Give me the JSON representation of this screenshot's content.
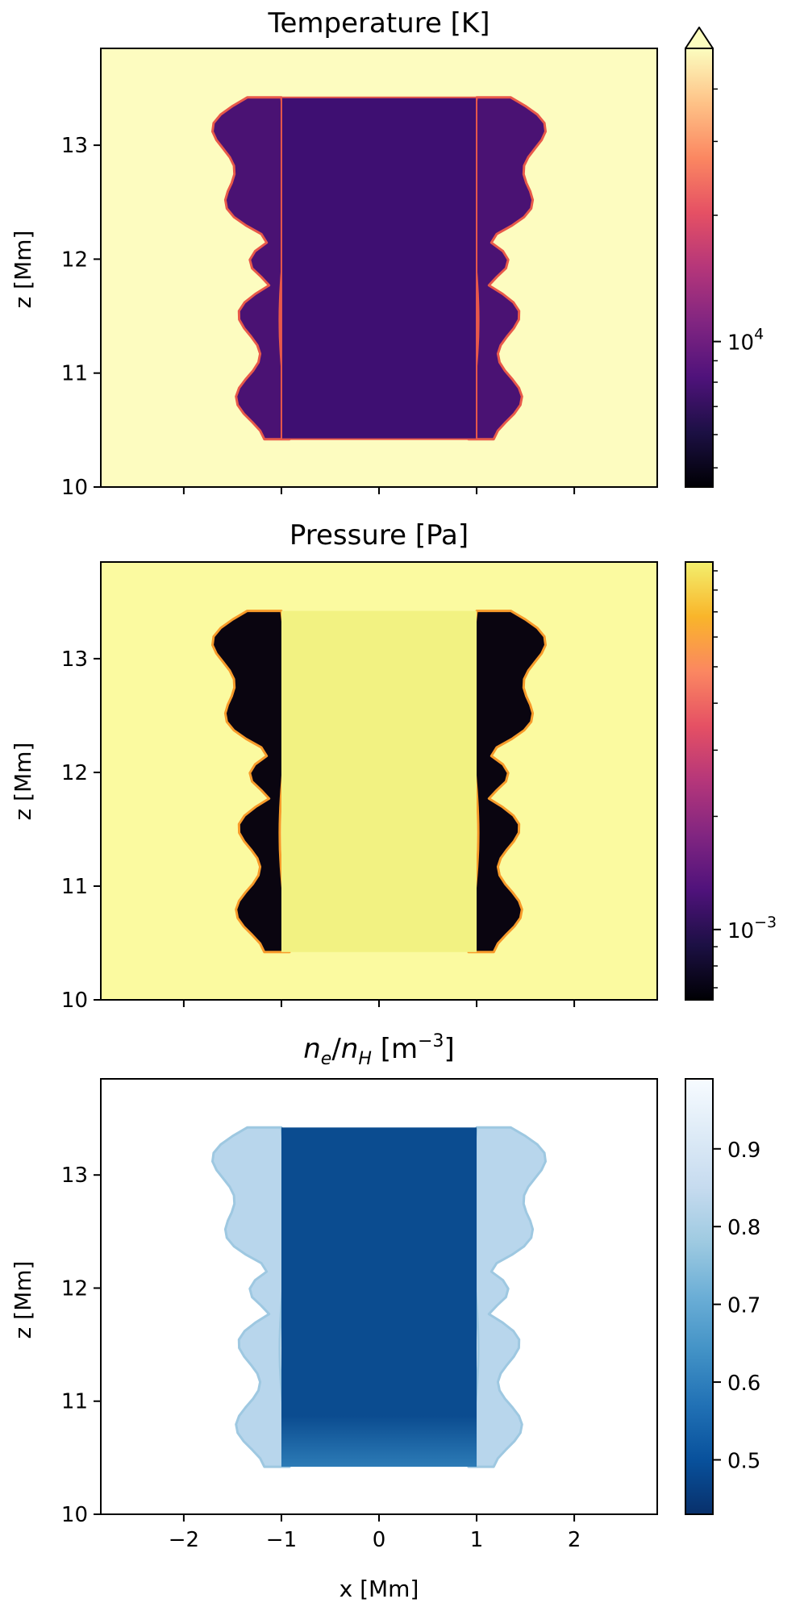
{
  "chart_data": [
    {
      "type": "heatmap",
      "title": "Temperature [K]",
      "xlabel": "",
      "ylabel": "z [Mm]",
      "xlim": [
        -2.85,
        2.85
      ],
      "ylim": [
        10,
        13.85
      ],
      "x_ticks": [
        -2,
        -1,
        0,
        1,
        2
      ],
      "x_tick_labels": [
        "",
        "",
        "",
        "",
        ""
      ],
      "y_ticks": [
        10,
        11,
        12,
        13
      ],
      "y_tick_labels": [
        "10",
        "11",
        "12",
        "13"
      ],
      "colormap": "inferno-like",
      "colors": {
        "background": "#fdfcc0",
        "inner": "#3e0f72",
        "edge": "#e8594a"
      },
      "colorbar": {
        "scale": "log",
        "min": 4500,
        "max": 50000,
        "ticks": [
          10000
        ],
        "tick_labels": [
          "10"
        ],
        "tick_exponents": [
          "4"
        ],
        "extend": "max",
        "stops": [
          "#000004",
          "#1c1044",
          "#4f127b",
          "#812581",
          "#b5367a",
          "#e55064",
          "#fb8761",
          "#fec287",
          "#fcfdbf"
        ]
      },
      "region": {
        "x_range": [
          -1.0,
          1.0
        ],
        "z_range": [
          10.42,
          13.42
        ],
        "mixing_x_extent": [
          1.0,
          1.75
        ]
      }
    },
    {
      "type": "heatmap",
      "title": "Pressure [Pa]",
      "xlabel": "",
      "ylabel": "z [Mm]",
      "xlim": [
        -2.85,
        2.85
      ],
      "ylim": [
        10,
        13.85
      ],
      "x_ticks": [
        -2,
        -1,
        0,
        1,
        2
      ],
      "x_tick_labels": [
        "",
        "",
        "",
        "",
        ""
      ],
      "y_ticks": [
        10,
        11,
        12,
        13
      ],
      "y_tick_labels": [
        "10",
        "11",
        "12",
        "13"
      ],
      "colormap": "inferno-like",
      "colors": {
        "background": "#fbfaa0",
        "inner": "#f2f282",
        "edge": "#f79a2a"
      },
      "colorbar": {
        "scale": "log",
        "min": 0.00065,
        "max": 0.0095,
        "ticks": [
          0.001
        ],
        "tick_labels": [
          "10"
        ],
        "tick_exponents": [
          "−3"
        ],
        "stops": [
          "#000004",
          "#1c1044",
          "#4f127b",
          "#812581",
          "#b5367a",
          "#e55064",
          "#fb8761",
          "#f9b52a",
          "#f3ef6e"
        ]
      },
      "region": {
        "x_range": [
          -1.0,
          1.0
        ],
        "z_range": [
          10.42,
          13.42
        ],
        "mixing_x_extent": [
          1.0,
          1.75
        ]
      }
    },
    {
      "type": "heatmap",
      "title": "n_e/n_H [m^-3]",
      "title_parts": {
        "n": "n",
        "e": "e",
        "slash": "/",
        "h": "H",
        "unit_open": " [m",
        "unit_exp": "−3",
        "unit_close": "]"
      },
      "xlabel": "x [Mm]",
      "ylabel": "z [Mm]",
      "xlim": [
        -2.85,
        2.85
      ],
      "ylim": [
        10,
        13.85
      ],
      "x_ticks": [
        -2,
        -1,
        0,
        1,
        2
      ],
      "x_tick_labels": [
        "−2",
        "−1",
        "0",
        "1",
        "2"
      ],
      "y_ticks": [
        10,
        11,
        12,
        13
      ],
      "y_tick_labels": [
        "10",
        "11",
        "12",
        "13"
      ],
      "colormap": "Blues_r",
      "colors": {
        "background": "#ffffff",
        "inner": "#0b4c90",
        "edge": "#9ec8e1"
      },
      "colorbar": {
        "scale": "linear",
        "min": 0.43,
        "max": 0.99,
        "ticks": [
          0.5,
          0.6,
          0.7,
          0.8,
          0.9
        ],
        "tick_labels": [
          "0.5",
          "0.6",
          "0.7",
          "0.8",
          "0.9"
        ],
        "stops": [
          "#08306b",
          "#08519c",
          "#2171b5",
          "#4292c6",
          "#6baed6",
          "#9ecae1",
          "#c6dbef",
          "#deebf7",
          "#f7fbff"
        ]
      },
      "region": {
        "x_range": [
          -1.0,
          1.0
        ],
        "z_range": [
          10.42,
          13.42
        ],
        "mixing_x_extent": [
          1.0,
          1.75
        ]
      }
    }
  ]
}
